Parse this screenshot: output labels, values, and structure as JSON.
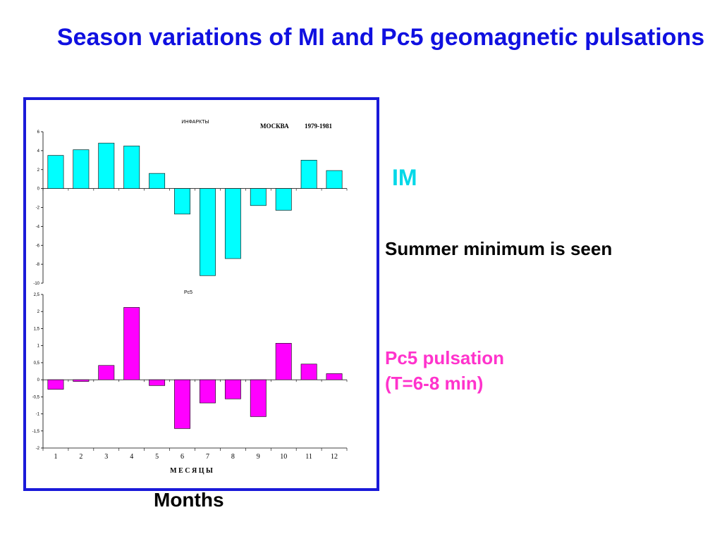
{
  "slide": {
    "title": "Season variations of MI and Pc5 geomagnetic pulsations",
    "im_label": "IM",
    "summer_note": "Summer minimum is seen",
    "pc5_note_line1": "Pc5 pulsation",
    "pc5_note_line2": "(T=6-8 min)",
    "months_label": "Months",
    "colors": {
      "title": "#1010e0",
      "frame": "#1a1ad9",
      "im": "#00ffff",
      "pc5": "#ff00ff"
    }
  },
  "chart_data": [
    {
      "type": "bar",
      "title": "ИНФАРКТЫ",
      "header_city": "МОСКВА",
      "header_years": "1979-1981",
      "categories": [
        "1",
        "2",
        "3",
        "4",
        "5",
        "6",
        "7",
        "8",
        "9",
        "10",
        "11",
        "12"
      ],
      "values": [
        3.5,
        4.1,
        4.8,
        4.5,
        1.6,
        -2.7,
        -9.2,
        -7.4,
        -1.8,
        -2.3,
        3.0,
        1.9
      ],
      "ylim": [
        -10,
        6
      ],
      "yticks": [
        "6",
        "4",
        "2",
        "0",
        "-2",
        "-4",
        "-6",
        "-8",
        "-10"
      ],
      "color": "#00ffff"
    },
    {
      "type": "bar",
      "title": "Pc5",
      "categories": [
        "1",
        "2",
        "3",
        "4",
        "5",
        "6",
        "7",
        "8",
        "9",
        "10",
        "11",
        "12"
      ],
      "values": [
        -0.28,
        -0.05,
        0.42,
        2.12,
        -0.17,
        -1.43,
        -0.68,
        -0.56,
        -1.08,
        1.07,
        0.46,
        0.18
      ],
      "ylim": [
        -2,
        2.5
      ],
      "yticks": [
        "2,5",
        "2",
        "1,5",
        "1",
        "0,5",
        "0",
        "-0,5",
        "-1",
        "-1,5",
        "-2"
      ],
      "xlabel": "М Е С Я Ц Ы",
      "color": "#ff00ff"
    }
  ]
}
